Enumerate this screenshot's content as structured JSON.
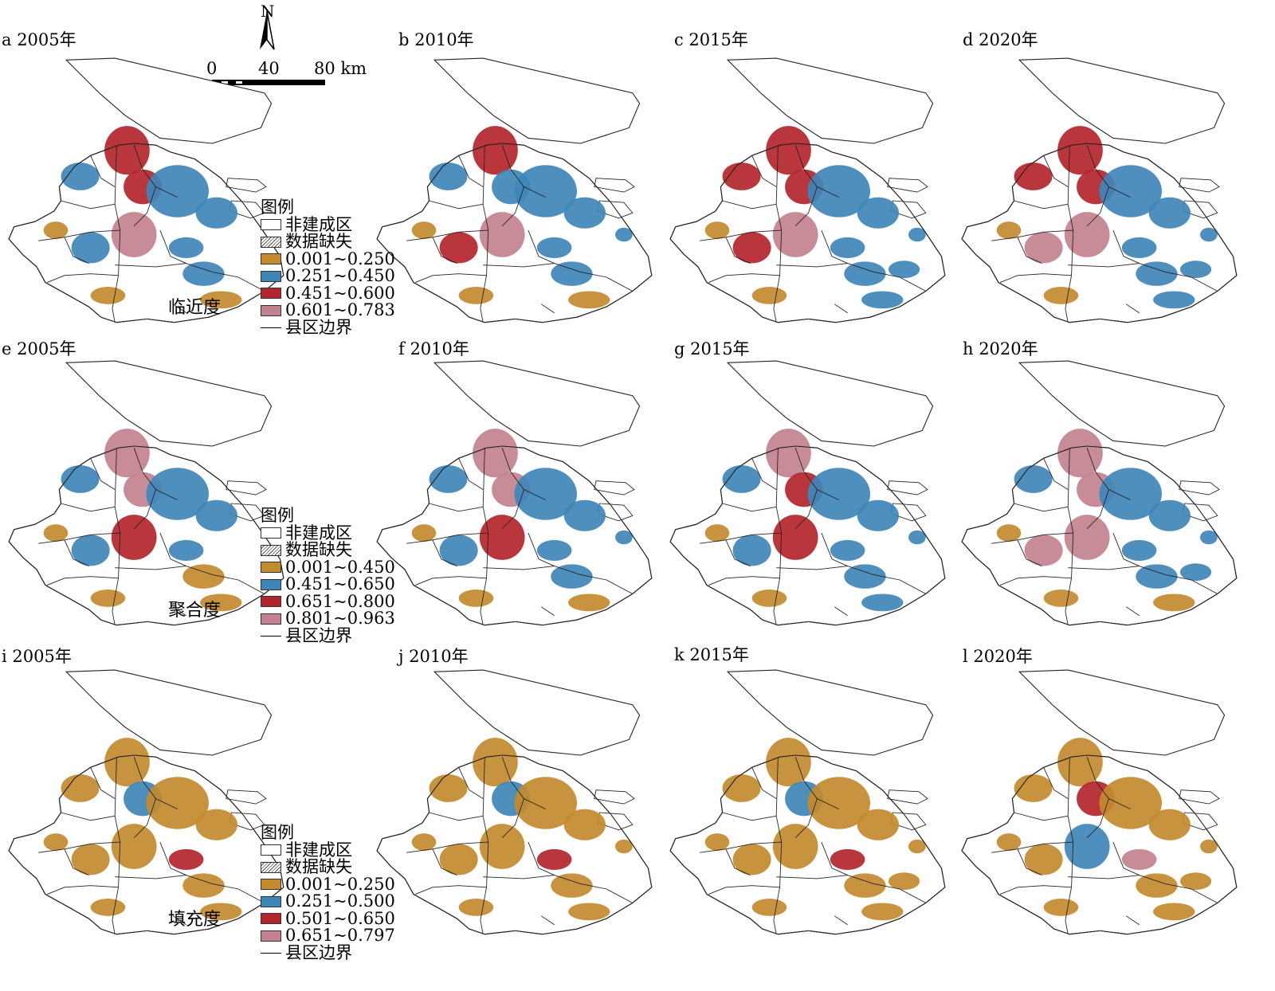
{
  "north_label": "N",
  "scale": {
    "ticks": [
      "0",
      "40",
      "80 km"
    ]
  },
  "panels": [
    {
      "label": "a 2005年",
      "metric": "临近度",
      "year": "2005"
    },
    {
      "label": "b 2010年",
      "metric": "临近度",
      "year": "2010"
    },
    {
      "label": "c 2015年",
      "metric": "临近度",
      "year": "2015"
    },
    {
      "label": "d 2020年",
      "metric": "临近度",
      "year": "2020"
    },
    {
      "label": "e 2005年",
      "metric": "聚合度",
      "year": "2005"
    },
    {
      "label": "f 2010年",
      "metric": "聚合度",
      "year": "2010"
    },
    {
      "label": "g 2015年",
      "metric": "聚合度",
      "year": "2015"
    },
    {
      "label": "h 2020年",
      "metric": "聚合度",
      "year": "2020"
    },
    {
      "label": "i 2005年",
      "metric": "填充度",
      "year": "2005"
    },
    {
      "label": "j 2010年",
      "metric": "填充度",
      "year": "2010"
    },
    {
      "label": "k 2015年",
      "metric": "填充度",
      "year": "2015"
    },
    {
      "label": "l 2020年",
      "metric": "填充度",
      "year": "2020"
    }
  ],
  "rows": [
    {
      "metric_label": "临近度",
      "legend": {
        "title": "图例",
        "items": [
          {
            "label": "非建成区",
            "color": "#ffffff",
            "kind": "box"
          },
          {
            "label": "数据缺失",
            "color": "hatch",
            "kind": "hatch"
          },
          {
            "label": "0.001~0.250",
            "color": "#c38a2e",
            "kind": "box"
          },
          {
            "label": "0.251~0.450",
            "color": "#3f86b8",
            "kind": "box"
          },
          {
            "label": "0.451~0.600",
            "color": "#b3252d",
            "kind": "box"
          },
          {
            "label": "0.601~0.783",
            "color": "#c3818f",
            "kind": "box"
          },
          {
            "label": "县区边界",
            "color": "#000000",
            "kind": "line"
          }
        ]
      }
    },
    {
      "metric_label": "聚合度",
      "legend": {
        "title": "图例",
        "items": [
          {
            "label": "非建成区",
            "color": "#ffffff",
            "kind": "box"
          },
          {
            "label": "数据缺失",
            "color": "hatch",
            "kind": "hatch"
          },
          {
            "label": "0.001~0.450",
            "color": "#c38a2e",
            "kind": "box"
          },
          {
            "label": "0.451~0.650",
            "color": "#3f86b8",
            "kind": "box"
          },
          {
            "label": "0.651~0.800",
            "color": "#b3252d",
            "kind": "box"
          },
          {
            "label": "0.801~0.963",
            "color": "#c3818f",
            "kind": "box"
          },
          {
            "label": "县区边界",
            "color": "#000000",
            "kind": "line"
          }
        ]
      }
    },
    {
      "metric_label": "填充度",
      "legend": {
        "title": "图例",
        "items": [
          {
            "label": "非建成区",
            "color": "#ffffff",
            "kind": "box"
          },
          {
            "label": "数据缺失",
            "color": "hatch",
            "kind": "hatch"
          },
          {
            "label": "0.001~0.250",
            "color": "#c38a2e",
            "kind": "box"
          },
          {
            "label": "0.251~0.500",
            "color": "#3f86b8",
            "kind": "box"
          },
          {
            "label": "0.501~0.650",
            "color": "#b3252d",
            "kind": "box"
          },
          {
            "label": "0.651~0.797",
            "color": "#c3818f",
            "kind": "box"
          },
          {
            "label": "县区边界",
            "color": "#000000",
            "kind": "line"
          }
        ]
      }
    }
  ],
  "colors": {
    "c1": "#c38a2e",
    "c2": "#3f86b8",
    "c3": "#b3252d",
    "c4": "#c3818f"
  }
}
